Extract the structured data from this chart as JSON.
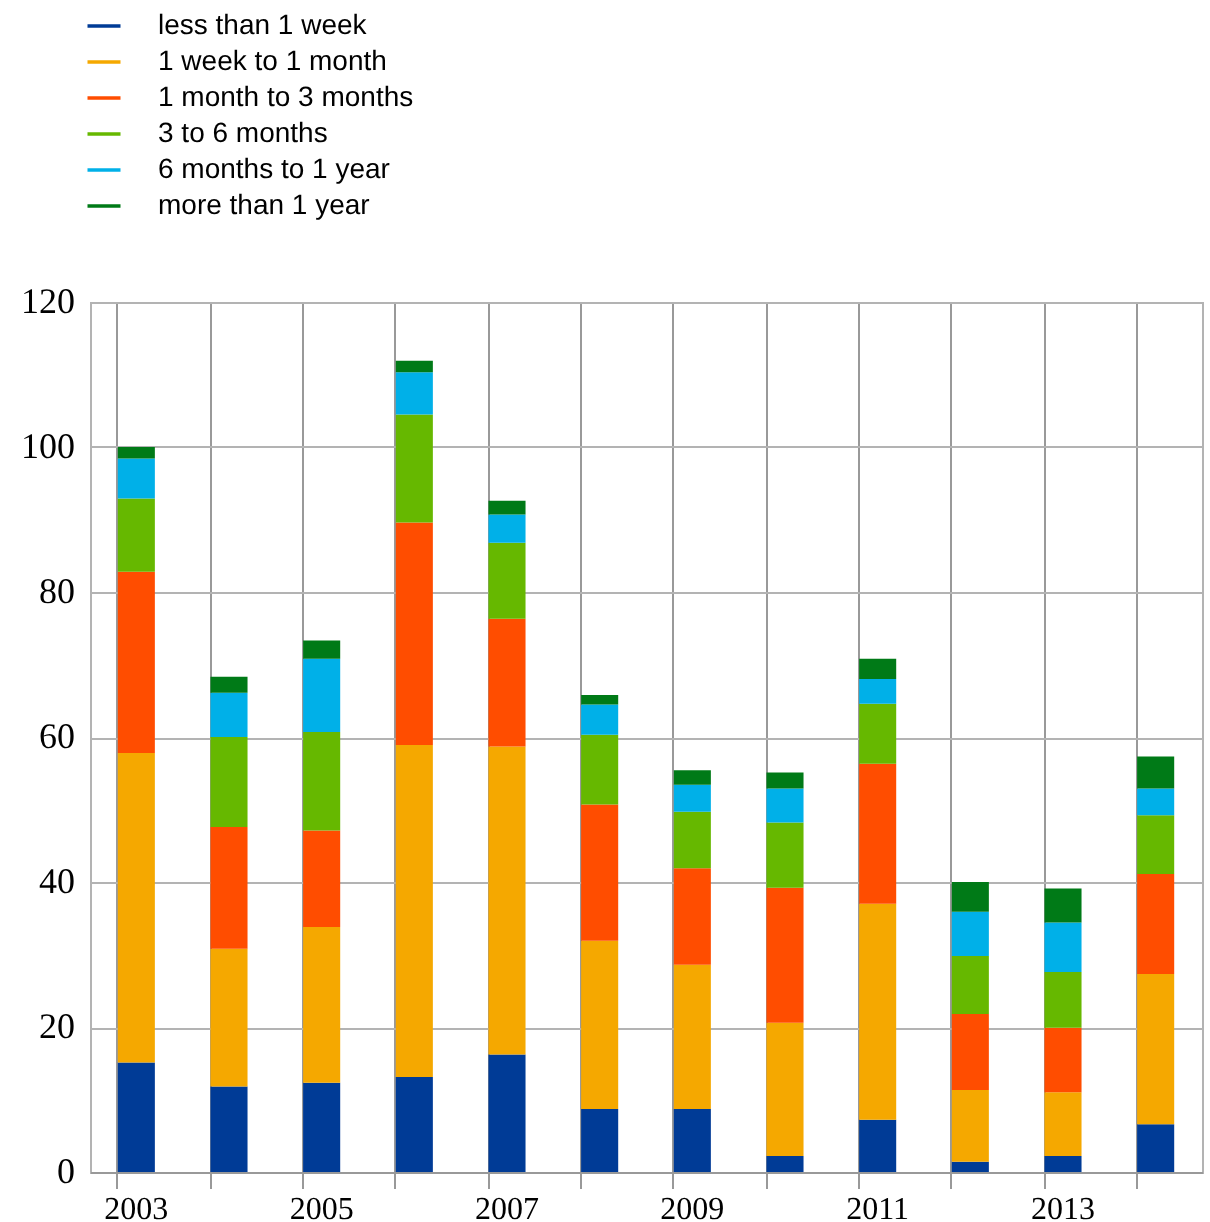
{
  "chart_data": {
    "type": "bar",
    "stacked": true,
    "categories": [
      "2003",
      null,
      "2005",
      null,
      "2007",
      null,
      "2009",
      null,
      "2011",
      null,
      "2013",
      null
    ],
    "series": [
      {
        "name": "less than 1 week",
        "color": "#003b96",
        "values": [
          15.1,
          11.8,
          12.3,
          13.1,
          16.2,
          8.7,
          8.7,
          2.2,
          7.2,
          1.4,
          2.2,
          6.6
        ]
      },
      {
        "name": "1 week to 1 month",
        "color": "#f5a800",
        "values": [
          42.7,
          19.0,
          21.5,
          45.8,
          42.5,
          23.2,
          19.9,
          18.4,
          29.8,
          9.9,
          8.8,
          20.7
        ]
      },
      {
        "name": "1 month to 3 months",
        "color": "#ff4d00",
        "values": [
          25.0,
          16.8,
          13.3,
          30.7,
          17.6,
          18.8,
          13.3,
          18.6,
          19.3,
          10.5,
          8.9,
          13.8
        ]
      },
      {
        "name": "3 to 6 months",
        "color": "#66b800",
        "values": [
          10.1,
          12.4,
          13.6,
          14.9,
          10.5,
          9.6,
          7.8,
          9.0,
          8.3,
          8.0,
          7.7,
          8.1
        ]
      },
      {
        "name": "6 months to 1 year",
        "color": "#00b0e8",
        "values": [
          5.5,
          6.1,
          10.1,
          5.8,
          3.9,
          4.2,
          3.7,
          4.7,
          3.4,
          6.1,
          6.8,
          3.7
        ]
      },
      {
        "name": "more than 1 year",
        "color": "#007a17",
        "values": [
          1.6,
          2.2,
          2.5,
          1.6,
          1.9,
          1.3,
          2.0,
          2.2,
          2.8,
          4.1,
          4.7,
          4.4
        ]
      }
    ],
    "ylim": [
      0,
      120
    ],
    "yticks": [
      0,
      20,
      40,
      60,
      80,
      100,
      120
    ],
    "grid": true,
    "legend": "top left"
  }
}
